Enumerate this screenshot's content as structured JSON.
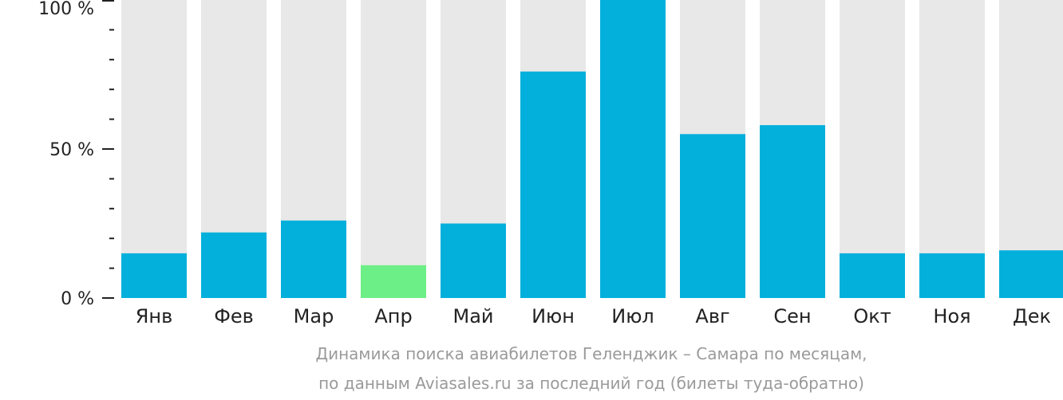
{
  "chart_data": {
    "type": "bar",
    "categories": [
      "Янв",
      "Фев",
      "Мар",
      "Апр",
      "Май",
      "Июн",
      "Июл",
      "Авг",
      "Сен",
      "Окт",
      "Ноя",
      "Дек"
    ],
    "values": [
      15,
      22,
      26,
      11,
      25,
      76,
      100,
      55,
      58,
      15,
      15,
      16
    ],
    "ylim": [
      0,
      100
    ],
    "y_ticks": [
      {
        "value": 0,
        "label": "0 %"
      },
      {
        "value": 50,
        "label": "50 %"
      },
      {
        "value": 100,
        "label": "100 %"
      }
    ],
    "highlight_index": 3,
    "colors": {
      "bar": "#03b0dc",
      "highlight": "#6cef87",
      "track": "#e8e8e8",
      "axis": "#222222"
    },
    "caption": [
      "Динамика поиска авиабилетов Геленджик – Самара по месяцам,",
      "по данным Aviasales.ru за последний год (билеты туда-обратно)"
    ]
  }
}
